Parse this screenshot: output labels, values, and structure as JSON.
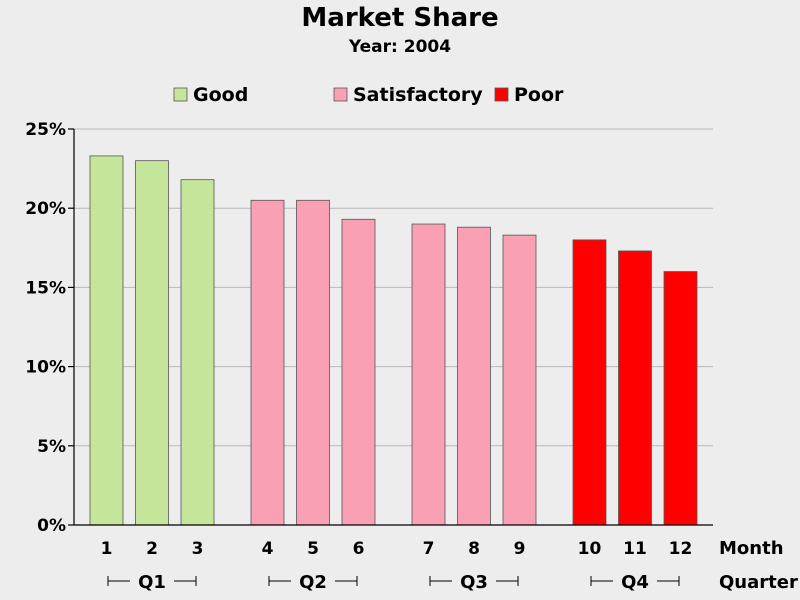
{
  "chart_data": {
    "type": "bar",
    "title": "Market Share",
    "subtitle": "Year: 2004",
    "xlabel": "Month",
    "group_axis_label": "Quarter",
    "ylim": [
      0,
      25
    ],
    "y_ticks": [
      0,
      5,
      10,
      15,
      20,
      25
    ],
    "y_tick_suffix": "%",
    "grid": true,
    "legend_position": "top",
    "categories": [
      "1",
      "2",
      "3",
      "4",
      "5",
      "6",
      "7",
      "8",
      "9",
      "10",
      "11",
      "12"
    ],
    "values": [
      23.3,
      23.0,
      21.8,
      20.5,
      20.5,
      19.3,
      19.0,
      18.8,
      18.3,
      18.0,
      17.3,
      16.0
    ],
    "ratings": [
      "Good",
      "Good",
      "Good",
      "Satisfactory",
      "Satisfactory",
      "Satisfactory",
      "Satisfactory",
      "Satisfactory",
      "Satisfactory",
      "Poor",
      "Poor",
      "Poor"
    ],
    "quarters": [
      {
        "label": "Q1",
        "months": [
          "1",
          "2",
          "3"
        ]
      },
      {
        "label": "Q2",
        "months": [
          "4",
          "5",
          "6"
        ]
      },
      {
        "label": "Q3",
        "months": [
          "7",
          "8",
          "9"
        ]
      },
      {
        "label": "Q4",
        "months": [
          "10",
          "11",
          "12"
        ]
      }
    ],
    "legend": [
      {
        "name": "Good",
        "color": "#c5e59a"
      },
      {
        "name": "Satisfactory",
        "color": "#f9a0b4"
      },
      {
        "name": "Poor",
        "color": "#ff0000"
      }
    ]
  }
}
